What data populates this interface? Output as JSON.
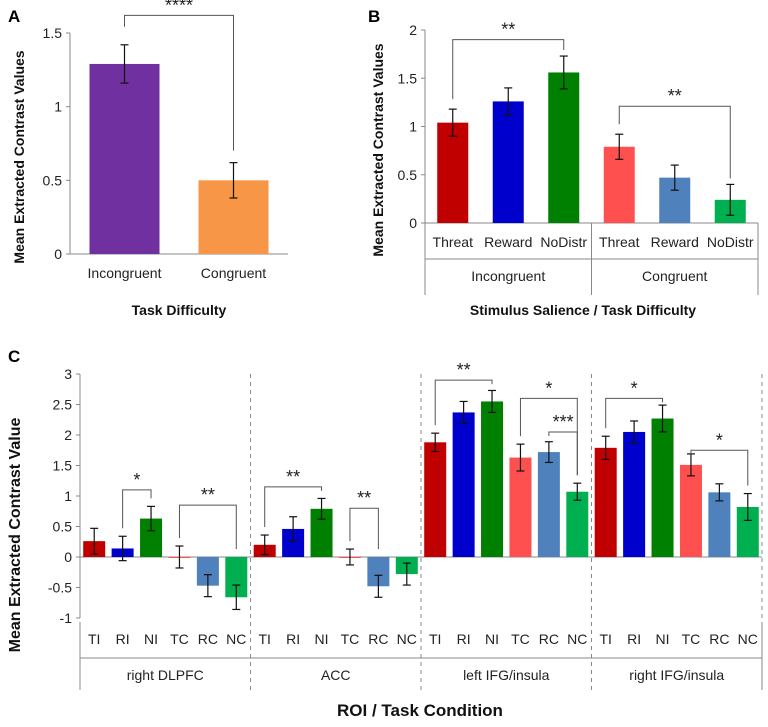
{
  "panel_labels": [
    "A",
    "B",
    "C"
  ],
  "colors": {
    "purple": "#7030a0",
    "orange": "#f79646",
    "red": "#c00000",
    "blue": "#0000cc",
    "green": "#008000",
    "lightred": "#ff5050",
    "lightblue": "#4f81bd",
    "lightgreen": "#00b050",
    "axis": "#888888",
    "bracket": "#555555",
    "error": "#111111"
  },
  "chart_data": [
    {
      "id": "A",
      "type": "bar",
      "ylabel": "Mean Extracted Contrast Values",
      "xlabel": "Task Difficulty",
      "ylim": [
        0,
        1.5
      ],
      "yticks": [
        "0",
        "0.5",
        "1",
        "1.5"
      ],
      "categories": [
        "Incongruent",
        "Congruent"
      ],
      "values": [
        1.29,
        0.5
      ],
      "errors": [
        0.13,
        0.12
      ],
      "bar_colors": [
        "purple",
        "orange"
      ],
      "brackets": [
        {
          "from": 0,
          "to": 1,
          "y": 1.62,
          "label": "****"
        }
      ]
    },
    {
      "id": "B",
      "type": "bar",
      "ylabel": "Mean Extracted Contrast Values",
      "xlabel": "Stimulus Salience / Task Difficulty",
      "ylim": [
        0,
        2
      ],
      "yticks": [
        "0",
        "0.5",
        "1",
        "1.5",
        "2"
      ],
      "categories": [
        "Threat",
        "Reward",
        "NoDistr",
        "Threat",
        "Reward",
        "NoDistr"
      ],
      "groups": [
        "Incongruent",
        "Congruent"
      ],
      "values": [
        1.04,
        1.26,
        1.56,
        0.79,
        0.47,
        0.24
      ],
      "errors": [
        0.14,
        0.14,
        0.17,
        0.13,
        0.13,
        0.16
      ],
      "bar_colors": [
        "red",
        "blue",
        "green",
        "lightred",
        "lightblue",
        "lightgreen"
      ],
      "brackets": [
        {
          "from": 0,
          "to": 2,
          "y": 1.9,
          "label": "**"
        },
        {
          "from": 3,
          "to": 5,
          "y": 1.21,
          "label": "**"
        }
      ]
    },
    {
      "id": "C",
      "type": "bar",
      "ylabel": "Mean Extracted Contrast Value",
      "xlabel": "ROI / Task Condition",
      "ylim": [
        -1,
        3
      ],
      "yticks": [
        "-1",
        "-0.5",
        "0",
        "0.5",
        "1",
        "1.5",
        "2",
        "2.5",
        "3"
      ],
      "categories": [
        "TI",
        "RI",
        "NI",
        "TC",
        "RC",
        "NC"
      ],
      "bar_colors": [
        "red",
        "blue",
        "green",
        "lightred",
        "lightblue",
        "lightgreen"
      ],
      "series": [
        {
          "name": "right DLPFC",
          "values": [
            0.26,
            0.14,
            0.63,
            0.0,
            -0.47,
            -0.66
          ],
          "errors": [
            0.21,
            0.2,
            0.2,
            0.18,
            0.18,
            0.2
          ],
          "brackets": [
            {
              "from": 1,
              "to": 2,
              "y": 1.1,
              "label": "*"
            },
            {
              "from": 3,
              "to": 5,
              "y": 0.85,
              "label": "**"
            }
          ]
        },
        {
          "name": "ACC",
          "values": [
            0.2,
            0.46,
            0.79,
            0.0,
            -0.48,
            -0.28
          ],
          "errors": [
            0.16,
            0.2,
            0.17,
            0.13,
            0.18,
            0.18
          ],
          "brackets": [
            {
              "from": 0,
              "to": 2,
              "y": 1.15,
              "label": "**"
            },
            {
              "from": 3,
              "to": 4,
              "y": 0.8,
              "label": "**"
            }
          ]
        },
        {
          "name": "left IFG/insula",
          "values": [
            1.88,
            2.37,
            2.55,
            1.63,
            1.72,
            1.07
          ],
          "errors": [
            0.15,
            0.18,
            0.18,
            0.22,
            0.17,
            0.14
          ],
          "brackets": [
            {
              "from": 0,
              "to": 2,
              "y": 2.9,
              "label": "**"
            },
            {
              "from": 3,
              "to": 5,
              "y": 2.6,
              "label": "*"
            },
            {
              "from": 4,
              "to": 5,
              "y": 2.05,
              "label": "***"
            }
          ]
        },
        {
          "name": "right IFG/insula",
          "values": [
            1.79,
            2.05,
            2.27,
            1.51,
            1.06,
            0.82
          ],
          "errors": [
            0.19,
            0.18,
            0.22,
            0.18,
            0.14,
            0.22
          ],
          "brackets": [
            {
              "from": 0,
              "to": 2,
              "y": 2.6,
              "label": "*"
            },
            {
              "from": 3,
              "to": 5,
              "y": 1.75,
              "label": "*"
            }
          ]
        }
      ]
    }
  ]
}
